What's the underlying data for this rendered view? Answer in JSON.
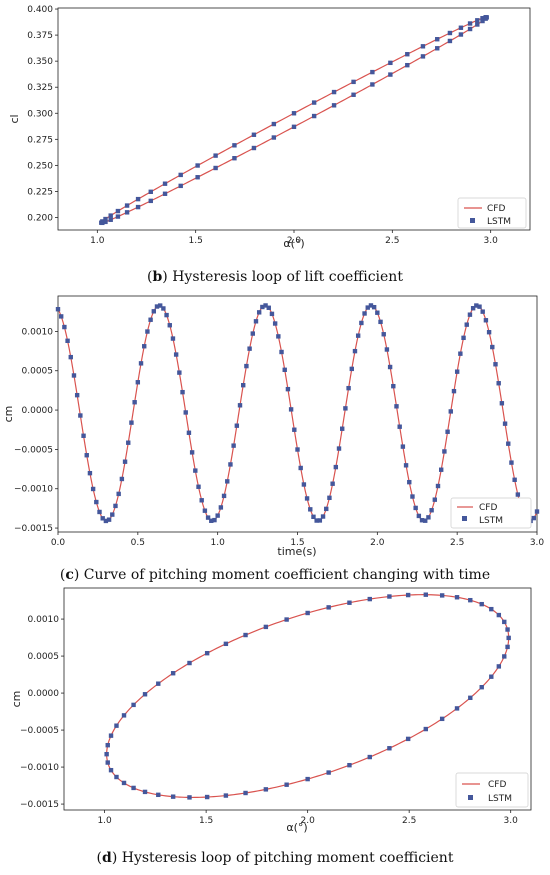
{
  "colors": {
    "cfd": "#d9534f",
    "lstm": "#44579b"
  },
  "captions": [
    {
      "letter": "b",
      "rest": " Hysteresis loop of lift coefficient"
    },
    {
      "letter": "c",
      "rest": " Curve of pitching moment coefficient changing with time"
    },
    {
      "letter": "d",
      "rest": " Hysteresis loop of pitching moment coefficient"
    }
  ],
  "chart_data": [
    {
      "type": "line",
      "xlabel": "α(°)",
      "ylabel": "cl",
      "xlim": [
        0.8,
        3.2
      ],
      "ylim": [
        0.188,
        0.401
      ],
      "xticks": [
        1.0,
        1.5,
        2.0,
        2.5,
        3.0
      ],
      "xticklabels": [
        "1.0",
        "1.5",
        "2.0",
        "2.5",
        "3.0"
      ],
      "yticks": [
        0.2,
        0.225,
        0.25,
        0.275,
        0.3,
        0.325,
        0.35,
        0.375,
        0.4
      ],
      "yticklabels": [
        "0.200",
        "0.225",
        "0.250",
        "0.275",
        "0.300",
        "0.325",
        "0.350",
        "0.375",
        "0.400"
      ],
      "grid": false,
      "legend": "bottom-right",
      "legend_labels": [
        "CFD",
        "LSTM"
      ],
      "loop": {
        "alpha_mean": 2.0,
        "alpha_amp": 0.98,
        "cl_mean": 0.2935,
        "cl_amp": 0.0985,
        "cl_split": 0.0065
      },
      "series": [
        {
          "name": "CFD",
          "kind": "line"
        },
        {
          "name": "LSTM",
          "kind": "markers",
          "count": 60
        }
      ]
    },
    {
      "type": "line",
      "xlabel": "time(s)",
      "ylabel": "cm",
      "xlim": [
        0.0,
        3.0
      ],
      "ylim": [
        -0.00155,
        0.00145
      ],
      "xticks": [
        0.0,
        0.5,
        1.0,
        1.5,
        2.0,
        2.5,
        3.0
      ],
      "xticklabels": [
        "0.0",
        "0.5",
        "1.0",
        "1.5",
        "2.0",
        "2.5",
        "3.0"
      ],
      "yticks": [
        0.001,
        0.0005,
        0.0,
        -0.0005,
        -0.001,
        -0.0015
      ],
      "yticklabels": [
        "0.0010",
        "0.0005",
        "0.0000",
        "−0.0005",
        "−0.0010",
        "−0.0015"
      ],
      "grid": false,
      "legend": "bottom-right",
      "legend_labels": [
        "CFD",
        "LSTM"
      ],
      "sine": {
        "mean": -4e-05,
        "amp": 0.00137,
        "period": 0.663,
        "peak_time": 0.635
      },
      "series": [
        {
          "name": "CFD",
          "kind": "line"
        },
        {
          "name": "LSTM",
          "kind": "markers",
          "count": 150
        }
      ]
    },
    {
      "type": "line",
      "xlabel": "α(°)",
      "ylabel": "cm",
      "xlim": [
        0.8,
        3.1
      ],
      "ylim": [
        -0.00158,
        0.00142
      ],
      "xticks": [
        1.0,
        1.5,
        2.0,
        2.5,
        3.0
      ],
      "xticklabels": [
        "1.0",
        "1.5",
        "2.0",
        "2.5",
        "3.0"
      ],
      "yticks": [
        0.001,
        0.0005,
        0.0,
        -0.0005,
        -0.001,
        -0.0015
      ],
      "yticklabels": [
        "0.0010",
        "0.0005",
        "0.0000",
        "−0.0005",
        "−0.0010",
        "−0.0015"
      ],
      "grid": false,
      "legend": "bottom-right",
      "legend_labels": [
        "CFD",
        "LSTM"
      ],
      "ellipse": {
        "alpha_center": 2.0,
        "alpha_amp": 0.99,
        "cm_center": -4e-05,
        "cm_amp": 0.00137,
        "phase_deg": -55
      },
      "series": [
        {
          "name": "CFD",
          "kind": "line"
        },
        {
          "name": "LSTM",
          "kind": "markers",
          "count": 60
        }
      ]
    }
  ]
}
